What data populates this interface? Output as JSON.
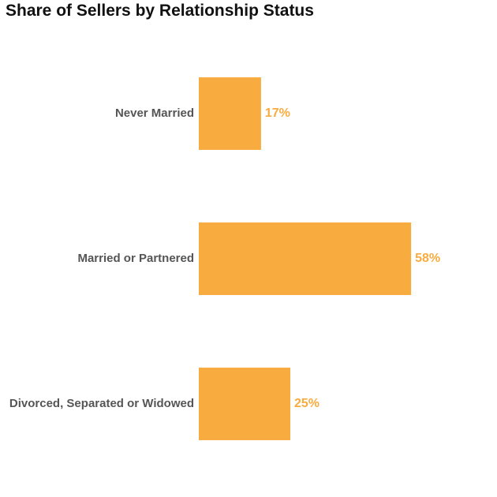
{
  "chart_data": {
    "type": "bar",
    "orientation": "horizontal",
    "title": "Share of Sellers by Relationship Status",
    "categories": [
      "Never Married",
      "Married or Partnered",
      "Divorced, Separated or Widowed"
    ],
    "values": [
      17,
      58,
      25
    ],
    "value_labels": [
      "17%",
      "58%",
      "25%"
    ],
    "unit": "%",
    "xlabel": "",
    "ylabel": "",
    "xlim": [
      0,
      60
    ],
    "grid": false,
    "legend": "none",
    "bar_color": "#F8AB3E",
    "value_label_color": "#F8AB3E",
    "category_label_color": "#555555"
  }
}
